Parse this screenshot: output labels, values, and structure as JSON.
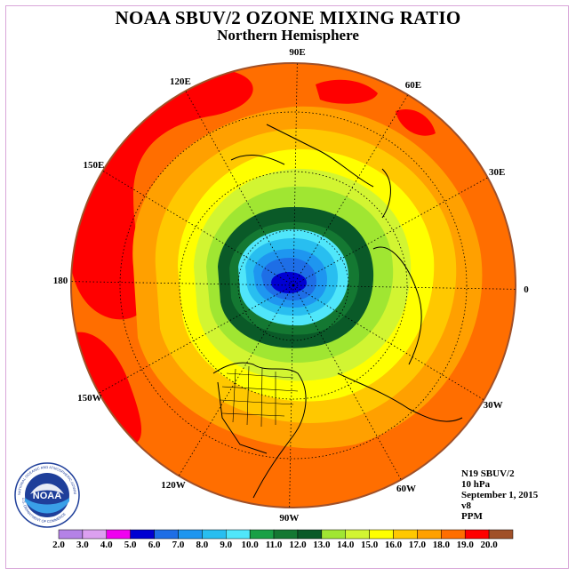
{
  "header": {
    "title": "NOAA SBUV/2 OZONE MIXING RATIO",
    "subtitle": "Northern Hemisphere"
  },
  "longitude_labels": [
    "90E",
    "60E",
    "30E",
    "0",
    "30W",
    "60W",
    "90W",
    "120W",
    "150W",
    "180",
    "150E",
    "120E"
  ],
  "info": {
    "satellite": "N19 SBUV/2",
    "level": "10 hPa",
    "date": "September 1, 2015",
    "version": "v8",
    "units": "PPM"
  },
  "colorbar": {
    "labels": [
      "2.0",
      "3.0",
      "4.0",
      "5.0",
      "6.0",
      "7.0",
      "8.0",
      "9.0",
      "10.0",
      "11.0",
      "12.0",
      "13.0",
      "14.0",
      "15.0",
      "16.0",
      "17.0",
      "18.0",
      "19.0",
      "20.0"
    ],
    "colors": [
      "#b482e6",
      "#dca0f0",
      "#f000f0",
      "#0000d2",
      "#1e6ee6",
      "#1e96f0",
      "#28bef0",
      "#50e6fa",
      "#19a046",
      "#147832",
      "#0a5a28",
      "#a0e632",
      "#d2f532",
      "#ffff00",
      "#ffc800",
      "#ffa000",
      "#ff6e00",
      "#ff0000",
      "#a05028"
    ]
  },
  "logo": {
    "text": "NOAA",
    "ring_text": "NATIONAL OCEANIC AND ATMOSPHERIC ADMINISTRATION",
    "ring_text_bottom": "U.S. DEPARTMENT OF COMMERCE"
  }
}
